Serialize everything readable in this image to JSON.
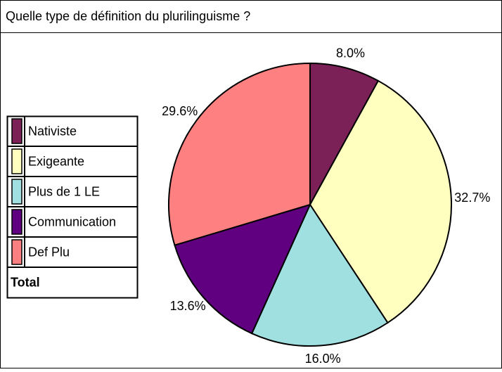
{
  "chart_data": {
    "type": "pie",
    "title": "Quelle type de définition du plurilinguisme ?",
    "categories": [
      "Nativiste",
      "Exigeante",
      "Plus de 1 LE",
      "Communication",
      "Def Plu"
    ],
    "values": [
      8.0,
      32.7,
      16.0,
      13.6,
      29.6
    ],
    "value_labels": [
      "8.0%",
      "32.7%",
      "16.0%",
      "13.6%",
      "29.6%"
    ],
    "colors": [
      "#7b2158",
      "#ffffc0",
      "#a0e0e0",
      "#600080",
      "#ff8080"
    ],
    "legend_footer": "Total",
    "legend": "left"
  }
}
